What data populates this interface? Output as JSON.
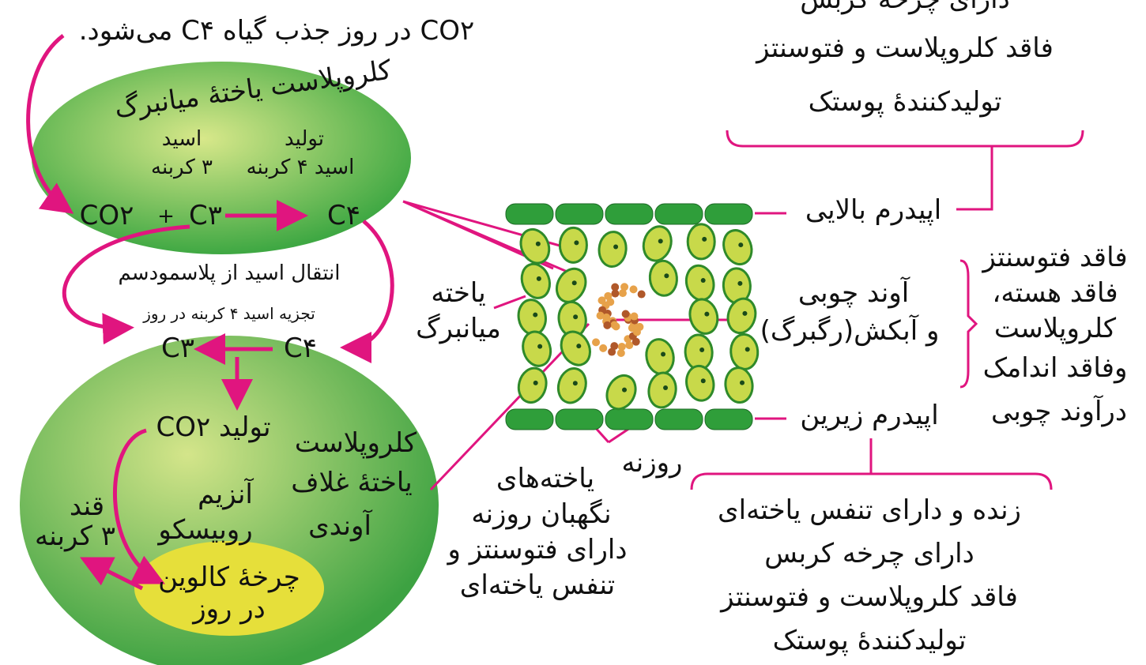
{
  "top_note": "CO۲ در روز جذب گیاه C۴ می‌شود.",
  "mesophyll": {
    "label": "کلروپلاست یاختهٔ میانبرگ",
    "product_label": [
      "تولید",
      "اسید ۴ کربنه"
    ],
    "substrate_label": [
      "اسید",
      "۳ کربنه"
    ],
    "equation": {
      "co2": "CO۲",
      "plus": "+",
      "c3": "C۳",
      "c4": "C۴"
    }
  },
  "transfer": {
    "plasmodesma": "انتقال اسید از پلاسمودسم",
    "breakdown": "تجزیه اسید ۴ کربنه در روز"
  },
  "bundle_sheath": {
    "c3": "C۳",
    "c4": "C۴",
    "co2_production": "تولید CO۲",
    "label": [
      "کلروپلاست",
      "یاختهٔ غلاف",
      "آوندی"
    ],
    "enzyme": [
      "آنزیم",
      "روبیسکو"
    ],
    "sugar": [
      "قند",
      "۳ کربنه"
    ],
    "calvin": [
      "چرخهٔ کالوین",
      "در روز"
    ]
  },
  "leaf": {
    "mesophyll_cell": [
      "یاخته",
      "میانبرگ"
    ],
    "stoma": "روزنه",
    "guard_cells": [
      "یاخته‌های",
      "نگهبان روزنه",
      "دارای فتوسنتز و",
      "تنفس یاخته‌ای"
    ],
    "upper_epidermis": "اپیدرم بالایی",
    "lower_epidermis": "اپیدرم زیرین",
    "vascular": [
      "آوند چوبی",
      "و آبکش(رگبرگ)"
    ],
    "xylem_note": [
      "فاقد فتوسنتز",
      "فاقد هسته،",
      "کلروپلاست",
      "وفاقد اندامک",
      "درآوند چوبی"
    ],
    "upper_note": [
      "دارای چرخه کربس",
      "فاقد کلروپلاست و فتوسنتز",
      "تولیدکنندهٔ پوستک"
    ],
    "lower_note": [
      "زنده و دارای تنفس یاخته‌ای",
      "دارای چرخه کربس",
      "فاقد کلروپلاست و فتوسنتز",
      "تولیدکنندهٔ پوستک"
    ]
  }
}
